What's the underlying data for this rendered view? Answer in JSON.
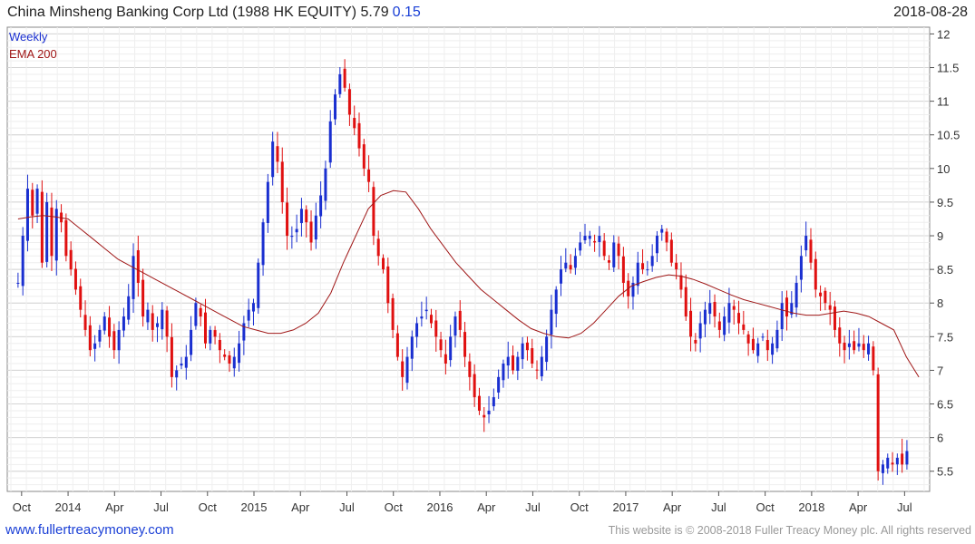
{
  "header": {
    "title": "China Minsheng Banking Corp Ltd (1988 HK EQUITY) 5.79",
    "change": "0.15",
    "date": "2018-08-28"
  },
  "legend": {
    "period": "Weekly",
    "indicator": "EMA 200"
  },
  "footer": {
    "website": "www.fullertreacymoney.com",
    "copyright": "This website is © 2008-2018 Fuller Treacy Money plc. All rights reserved"
  },
  "colors": {
    "up": "#1a2fd0",
    "down": "#e01010",
    "ema": "#a01818",
    "grid": "#d4d4d4"
  },
  "chart_data": {
    "type": "candlestick",
    "title": "China Minsheng Banking Corp Ltd (1988 HK EQUITY)",
    "period": "Weekly",
    "ylim": [
      5.2,
      12.1
    ],
    "y_ticks": [
      5.5,
      6,
      6.5,
      7,
      7.5,
      8,
      8.5,
      9,
      9.5,
      10,
      10.5,
      11,
      11.5,
      12
    ],
    "x_labels": [
      {
        "label": "Oct",
        "week": 3
      },
      {
        "label": "2014",
        "week": 16
      },
      {
        "label": "Apr",
        "week": 29
      },
      {
        "label": "Jul",
        "week": 42
      },
      {
        "label": "Oct",
        "week": 55
      },
      {
        "label": "2015",
        "week": 68
      },
      {
        "label": "Apr",
        "week": 81
      },
      {
        "label": "Jul",
        "week": 94
      },
      {
        "label": "Oct",
        "week": 107
      },
      {
        "label": "2016",
        "week": 120
      },
      {
        "label": "Apr",
        "week": 133
      },
      {
        "label": "Jul",
        "week": 146
      },
      {
        "label": "Oct",
        "week": 159
      },
      {
        "label": "2017",
        "week": 172
      },
      {
        "label": "Apr",
        "week": 185
      },
      {
        "label": "Jul",
        "week": 198
      },
      {
        "label": "Oct",
        "week": 211
      },
      {
        "label": "2018",
        "week": 224
      },
      {
        "label": "Apr",
        "week": 237
      },
      {
        "label": "Jul",
        "week": 250
      }
    ],
    "series_close": [
      8.3,
      9.0,
      9.7,
      9.3,
      9.7,
      8.6,
      9.5,
      8.7,
      9.4,
      9.2,
      8.7,
      8.5,
      8.2,
      7.9,
      7.6,
      7.3,
      7.4,
      7.6,
      7.8,
      7.5,
      7.3,
      7.6,
      7.8,
      8.1,
      8.7,
      8.3,
      7.8,
      7.9,
      7.6,
      7.7,
      7.9,
      7.5,
      6.9,
      7.0,
      7.1,
      7.2,
      7.6,
      8.0,
      7.8,
      7.4,
      7.6,
      7.5,
      7.3,
      7.2,
      7.1,
      7.2,
      7.4,
      7.7,
      7.9,
      8.0,
      8.6,
      9.2,
      9.8,
      10.4,
      10.1,
      9.5,
      9.0,
      9.0,
      9.1,
      9.4,
      9.2,
      8.9,
      9.3,
      9.6,
      10.0,
      10.7,
      11.1,
      11.4,
      11.2,
      10.8,
      10.6,
      10.3,
      10.0,
      9.8,
      9.0,
      8.7,
      8.5,
      8.0,
      7.6,
      7.2,
      6.9,
      7.2,
      7.5,
      7.7,
      7.8,
      7.9,
      7.7,
      7.5,
      7.3,
      7.1,
      7.5,
      7.8,
      7.6,
      7.2,
      6.9,
      6.6,
      6.4,
      6.3,
      6.4,
      6.6,
      6.9,
      7.1,
      7.2,
      7.0,
      7.2,
      7.4,
      7.3,
      7.1,
      7.0,
      7.2,
      7.5,
      7.9,
      8.2,
      8.5,
      8.6,
      8.5,
      8.7,
      8.9,
      9.0,
      9.0,
      8.9,
      9.0,
      8.7,
      8.6,
      8.9,
      8.7,
      8.3,
      8.1,
      8.3,
      8.6,
      8.5,
      8.5,
      8.7,
      9.0,
      9.1,
      8.9,
      8.6,
      8.5,
      8.2,
      7.8,
      7.5,
      7.4,
      7.7,
      7.9,
      8.0,
      7.8,
      7.6,
      7.8,
      8.0,
      7.9,
      7.7,
      7.6,
      7.4,
      7.3,
      7.4,
      7.5,
      7.3,
      7.4,
      7.6,
      8.0,
      7.8,
      8.0,
      8.3,
      8.7,
      9.0,
      8.6,
      8.2,
      8.1,
      8.0,
      7.9,
      7.6,
      7.4,
      7.3,
      7.4,
      7.3,
      7.4,
      7.3,
      7.4,
      7.0,
      5.5,
      5.6,
      5.7,
      5.6,
      5.7,
      5.6,
      5.8
    ],
    "ema_200": [
      9.25,
      9.28,
      9.3,
      9.28,
      9.25,
      9.1,
      8.95,
      8.8,
      8.65,
      8.55,
      8.45,
      8.35,
      8.25,
      8.15,
      8.05,
      7.95,
      7.85,
      7.75,
      7.65,
      7.6,
      7.55,
      7.55,
      7.6,
      7.7,
      7.85,
      8.15,
      8.6,
      9.0,
      9.4,
      9.6,
      9.67,
      9.65,
      9.4,
      9.1,
      8.85,
      8.6,
      8.4,
      8.2,
      8.05,
      7.9,
      7.75,
      7.62,
      7.55,
      7.5,
      7.48,
      7.55,
      7.7,
      7.9,
      8.1,
      8.25,
      8.32,
      8.38,
      8.42,
      8.4,
      8.35,
      8.28,
      8.2,
      8.12,
      8.05,
      8.0,
      7.95,
      7.9,
      7.85,
      7.82,
      7.82,
      7.85,
      7.88,
      7.85,
      7.8,
      7.7,
      7.6,
      7.2,
      6.9
    ],
    "ema_range_weeks": [
      2,
      254
    ]
  }
}
